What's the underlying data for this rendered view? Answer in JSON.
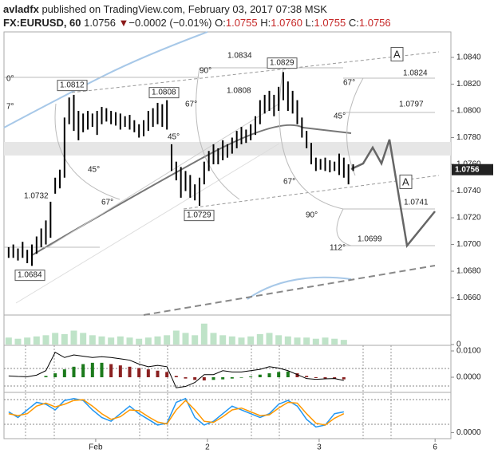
{
  "header": {
    "author": "avladfx",
    "published": "published on TradingView.com, February 03, 2017 07:38 MSK",
    "symbol": "FX:EURUSD, 60",
    "price": "1.0756",
    "arrow": "▼",
    "change": "−0.0002 (−0.01%)",
    "ohlc": [
      {
        "label": "O:",
        "value": "1.0755"
      },
      {
        "label": "H:",
        "value": "1.0760"
      },
      {
        "label": "L:",
        "value": "1.0755"
      },
      {
        "label": "C:",
        "value": "1.0756"
      }
    ]
  },
  "chart_data": [
    {
      "type": "ohlc",
      "color": "#000000",
      "x": [
        1,
        2,
        3,
        4,
        5,
        6,
        7,
        8,
        9,
        10,
        11,
        12,
        13,
        14,
        15,
        16,
        17,
        18,
        19,
        20,
        21,
        22,
        23,
        24,
        25,
        26,
        27,
        28,
        29,
        30,
        31,
        32,
        33,
        34,
        35,
        36,
        37,
        38,
        39,
        40,
        41,
        42,
        43,
        44,
        45,
        46,
        47,
        48,
        49,
        50,
        51,
        52,
        53,
        54,
        55,
        56,
        57,
        58,
        59,
        60,
        61,
        62,
        63,
        64,
        65,
        66,
        67,
        68,
        69,
        70,
        71,
        72,
        73,
        74,
        75
      ],
      "high": [
        1.0698,
        1.07,
        1.0697,
        1.0702,
        1.0696,
        1.07,
        1.0706,
        1.0712,
        1.0718,
        1.0732,
        1.075,
        1.0756,
        1.0795,
        1.081,
        1.0812,
        1.08,
        1.0798,
        1.08,
        1.0798,
        1.08,
        1.0803,
        1.0802,
        1.08,
        1.0799,
        1.0798,
        1.0796,
        1.0797,
        1.0793,
        1.079,
        1.0793,
        1.08,
        1.0802,
        1.0806,
        1.0805,
        1.0808,
        1.0775,
        1.0762,
        1.0758,
        1.0755,
        1.0752,
        1.0745,
        1.075,
        1.0762,
        1.077,
        1.0775,
        1.0772,
        1.0778,
        1.0775,
        1.078,
        1.0785,
        1.0788,
        1.0786,
        1.079,
        1.0796,
        1.0808,
        1.0812,
        1.0815,
        1.0812,
        1.0818,
        1.0829,
        1.0822,
        1.0815,
        1.0808,
        1.0795,
        1.0785,
        1.0776,
        1.0765,
        1.0764,
        1.0765,
        1.0763,
        1.0762,
        1.0768,
        1.0765,
        1.076,
        1.076
      ],
      "low": [
        1.069,
        1.069,
        1.0688,
        1.069,
        1.0686,
        1.0684,
        1.0693,
        1.0698,
        1.07,
        1.0705,
        1.0738,
        1.0742,
        1.075,
        1.079,
        1.0785,
        1.0778,
        1.0784,
        1.0786,
        1.0788,
        1.0782,
        1.079,
        1.0792,
        1.079,
        1.0789,
        1.0786,
        1.0788,
        1.0786,
        1.0784,
        1.078,
        1.0781,
        1.0785,
        1.0788,
        1.079,
        1.0788,
        1.0786,
        1.0755,
        1.0748,
        1.0735,
        1.074,
        1.0735,
        1.0733,
        1.0729,
        1.0745,
        1.0755,
        1.076,
        1.076,
        1.0763,
        1.0765,
        1.0768,
        1.0772,
        1.0775,
        1.0776,
        1.0778,
        1.0782,
        1.079,
        1.0798,
        1.08,
        1.0796,
        1.08,
        1.0808,
        1.08,
        1.0798,
        1.079,
        1.078,
        1.0772,
        1.076,
        1.0755,
        1.0756,
        1.0755,
        1.0754,
        1.0755,
        1.0752,
        1.075,
        1.0745,
        1.0755
      ],
      "xlim": [
        0,
        96
      ],
      "ylim": [
        1.06472,
        1.08591
      ],
      "yticks": [
        {
          "value": 1.066,
          "label": "1.0660"
        },
        {
          "value": 1.068,
          "label": "1.0680"
        },
        {
          "value": 1.07,
          "label": "1.0700"
        },
        {
          "value": 1.072,
          "label": "1.0720"
        },
        {
          "value": 1.074,
          "label": "1.0740"
        },
        {
          "value": 1.076,
          "label": "1.0760"
        },
        {
          "value": 1.078,
          "label": "1.0780"
        },
        {
          "value": 1.08,
          "label": "1.0800"
        },
        {
          "value": 1.082,
          "label": "1.0820"
        },
        {
          "value": 1.084,
          "label": "1.0840"
        }
      ],
      "xticks": [
        {
          "value": 19.7,
          "label": "Feb"
        },
        {
          "value": 43.7,
          "label": "2"
        },
        {
          "value": 67.7,
          "label": "3"
        },
        {
          "value": 92.6,
          "label": "6"
        }
      ],
      "last_price": 1.0756,
      "annotations": [
        "1.0834",
        "1.0829",
        "1.0812",
        "1.0808",
        "1.0808",
        "1.0732",
        "1.0729",
        "1.0684",
        "1.0824",
        "1.0797",
        "1.0741",
        "1.0699",
        "0°",
        "7°",
        "90°",
        "67°",
        "45°",
        "45°",
        "67°",
        "67°",
        "45°",
        "67°",
        "90°",
        "112°",
        "A",
        "A"
      ]
    },
    {
      "type": "bar",
      "color": "#bfe3c8",
      "x": [
        1,
        3,
        5,
        7,
        9,
        11,
        13,
        15,
        17,
        19,
        21,
        23,
        25,
        27,
        29,
        31,
        33,
        35,
        37,
        39,
        41,
        43,
        45,
        47,
        49,
        51,
        53,
        55,
        57,
        59,
        61,
        63,
        65,
        67,
        69,
        71,
        73
      ],
      "values": [
        0.3,
        0.25,
        0.3,
        0.35,
        0.4,
        0.5,
        0.45,
        0.6,
        0.5,
        0.4,
        0.35,
        0.3,
        0.35,
        0.3,
        0.25,
        0.3,
        0.35,
        0.4,
        0.6,
        0.5,
        0.4,
        0.9,
        0.5,
        0.4,
        0.35,
        0.3,
        0.35,
        0.45,
        0.5,
        0.4,
        0.35,
        0.3,
        0.3,
        0.25,
        0.3,
        0.25,
        0.2
      ],
      "ylim": [
        0,
        1.2
      ],
      "yticks": [
        0
      ]
    },
    {
      "type": "macd",
      "up_color": "#1b7a1b",
      "down_color": "#8b2020",
      "line_color": "#000000",
      "x": [
        1,
        3,
        5,
        7,
        9,
        11,
        13,
        15,
        17,
        19,
        21,
        23,
        25,
        27,
        29,
        31,
        33,
        35,
        37,
        39,
        41,
        43,
        45,
        47,
        49,
        51,
        53,
        55,
        57,
        59,
        61,
        63,
        65,
        67,
        69,
        71,
        73
      ],
      "histogram": [
        0,
        0,
        0,
        0,
        0.0005,
        0.0015,
        0.003,
        0.004,
        0.005,
        0.0055,
        0.0055,
        0.005,
        0.0045,
        0.004,
        0.0035,
        0.003,
        0.0025,
        0.002,
        0.0005,
        -0.0005,
        -0.001,
        -0.0012,
        -0.001,
        -0.0008,
        -0.0005,
        -0.0002,
        0.0003,
        0.001,
        0.0015,
        0.002,
        0.0022,
        0.0015,
        0.0005,
        -0.0003,
        -0.0005,
        -0.0006,
        -0.0008
      ],
      "line": [
        0.0005,
        0.0003,
        0.0002,
        0.0008,
        0.0025,
        0.0095,
        0.0075,
        0.0085,
        0.008,
        0.0075,
        0.0078,
        0.0075,
        0.007,
        0.0065,
        0.005,
        0.004,
        0.0045,
        0.004,
        -0.004,
        -0.0035,
        -0.002,
        0.001,
        0.001,
        0.0025,
        0.002,
        0.002,
        0.0025,
        0.003,
        0.004,
        0.0035,
        0.0025,
        0.001,
        -0.0005,
        -0.0008,
        -0.0006,
        -0.0005,
        -0.0012
      ],
      "ylim": [
        -0.00515,
        0.01152
      ],
      "yticks": [
        {
          "value": 0.01,
          "label": "0.0100"
        },
        {
          "value": 0,
          "label": "0.0000"
        }
      ]
    },
    {
      "type": "line",
      "x": [
        1,
        3,
        5,
        7,
        9,
        11,
        13,
        15,
        17,
        19,
        21,
        23,
        25,
        27,
        29,
        31,
        33,
        35,
        37,
        39,
        41,
        43,
        45,
        47,
        49,
        51,
        53,
        55,
        57,
        59,
        61,
        63,
        65,
        67,
        69,
        71,
        73
      ],
      "series": [
        {
          "color": "#2196f3",
          "values": [
            0.55,
            0.4,
            0.6,
            0.8,
            0.75,
            0.6,
            0.85,
            0.9,
            0.85,
            0.6,
            0.4,
            0.3,
            0.5,
            0.7,
            0.5,
            0.35,
            0.2,
            0.25,
            0.8,
            0.9,
            0.4,
            0.2,
            0.3,
            0.5,
            0.7,
            0.6,
            0.5,
            0.4,
            0.5,
            0.75,
            0.85,
            0.7,
            0.35,
            0.15,
            0.2,
            0.5,
            0.55
          ]
        },
        {
          "color": "#ff9800",
          "values": [
            0.5,
            0.45,
            0.5,
            0.7,
            0.78,
            0.68,
            0.75,
            0.85,
            0.87,
            0.7,
            0.5,
            0.35,
            0.42,
            0.6,
            0.58,
            0.42,
            0.28,
            0.23,
            0.6,
            0.85,
            0.6,
            0.3,
            0.27,
            0.42,
            0.6,
            0.65,
            0.55,
            0.45,
            0.47,
            0.65,
            0.8,
            0.78,
            0.5,
            0.25,
            0.2,
            0.38,
            0.5
          ]
        }
      ],
      "ylim": [
        -0.16,
        1
      ],
      "yticks": [
        {
          "value": 0,
          "label": "0.0000"
        }
      ]
    }
  ]
}
